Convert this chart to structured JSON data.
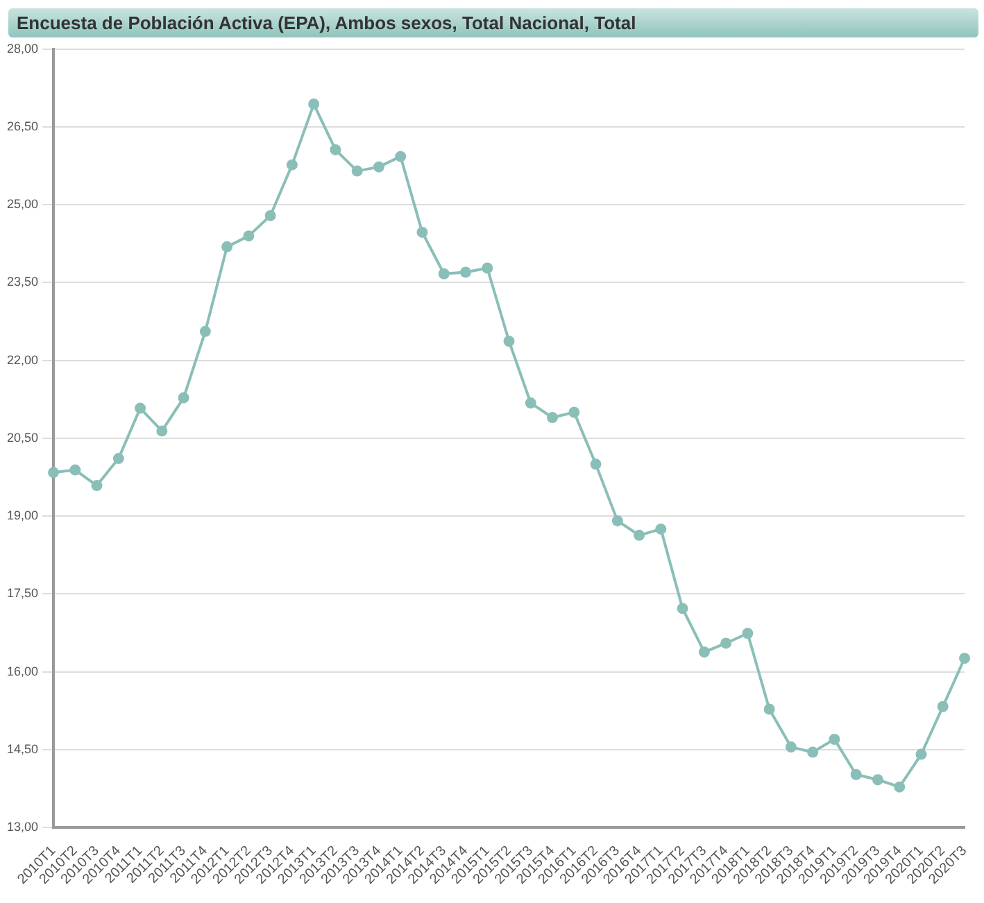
{
  "chart_data": {
    "type": "line",
    "title": "Encuesta de Población Activa (EPA), Ambos sexos, Total Nacional, Total",
    "categories": [
      "2010T1",
      "2010T2",
      "2010T3",
      "2010T4",
      "2011T1",
      "2011T2",
      "2011T3",
      "2011T4",
      "2012T1",
      "2012T2",
      "2012T3",
      "2012T4",
      "2013T1",
      "2013T2",
      "2013T3",
      "2013T4",
      "2014T1",
      "2014T2",
      "2014T3",
      "2014T4",
      "2015T1",
      "2015T2",
      "2015T3",
      "2015T4",
      "2016T1",
      "2016T2",
      "2016T3",
      "2016T4",
      "2017T1",
      "2017T2",
      "2017T3",
      "2017T4",
      "2018T1",
      "2018T2",
      "2018T3",
      "2018T4",
      "2019T1",
      "2019T2",
      "2019T3",
      "2019T4",
      "2020T1",
      "2020T2",
      "2020T3"
    ],
    "series": [
      {
        "color": "#8abfb8",
        "values": [
          19.84,
          19.89,
          19.59,
          20.11,
          21.08,
          20.64,
          21.28,
          22.56,
          24.19,
          24.4,
          24.79,
          25.77,
          26.94,
          26.06,
          25.65,
          25.73,
          25.93,
          24.47,
          23.67,
          23.7,
          23.78,
          22.37,
          21.18,
          20.9,
          21.0,
          20.0,
          18.91,
          18.63,
          18.75,
          17.22,
          16.38,
          16.55,
          16.74,
          15.28,
          14.55,
          14.45,
          14.7,
          14.02,
          13.92,
          13.78,
          14.41,
          15.33,
          16.26
        ]
      }
    ],
    "ylim": [
      13,
      28
    ],
    "yticks": [
      {
        "value": 13,
        "label": "13,00"
      },
      {
        "value": 14.5,
        "label": "14,50"
      },
      {
        "value": 16,
        "label": "16,00"
      },
      {
        "value": 17.5,
        "label": "17,50"
      },
      {
        "value": 19,
        "label": "19,00"
      },
      {
        "value": 20.5,
        "label": "20,50"
      },
      {
        "value": 22,
        "label": "22,00"
      },
      {
        "value": 23.5,
        "label": "23,50"
      },
      {
        "value": 25,
        "label": "25,00"
      },
      {
        "value": 26.5,
        "label": "26,50"
      },
      {
        "value": 28,
        "label": "28,00"
      }
    ],
    "grid": "y",
    "marker": "circle",
    "line_style": "solid"
  }
}
